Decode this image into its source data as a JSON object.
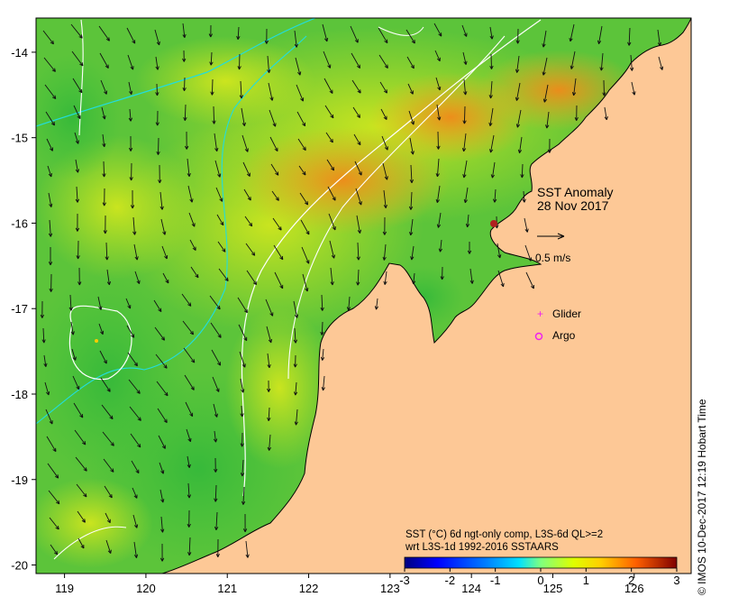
{
  "map": {
    "title": "SST Anomaly",
    "date": "28 Nov 2017",
    "velocity_scale_label": "0.5 m/s",
    "legend": {
      "glider_label": "Glider",
      "argo_label": "Argo",
      "glider_color": "#ee22ee",
      "argo_color": "#ee22ee"
    },
    "colorbar": {
      "line1": "SST (°C) 6d ngt-only comp, L3S-6d QL>=2",
      "line2": "wrt L3S-1d 1992-2016 SSTAARS",
      "ticks": [
        "-3",
        "-2",
        "-1",
        "0",
        "1",
        "2",
        "3"
      ],
      "min": -3,
      "max": 3,
      "colors": [
        "#00007f",
        "#0000ff",
        "#007fff",
        "#00ffff",
        "#7fff7f",
        "#ffff00",
        "#ff7f00",
        "#ff0000",
        "#7f0000"
      ]
    },
    "x_ticks": [
      "119",
      "120",
      "121",
      "122",
      "123",
      "124",
      "125",
      "126"
    ],
    "y_ticks": [
      "-14",
      "-15",
      "-16",
      "-17",
      "-18",
      "-19",
      "-20"
    ],
    "lon_range": [
      118.65,
      126.7
    ],
    "lat_range": [
      -20.1,
      -13.6
    ],
    "land_color": "#fdc896",
    "ocean_base_color": "#66cc33",
    "credit": "© IMOS 10-Dec-2017 12:19 Hobart Time"
  }
}
